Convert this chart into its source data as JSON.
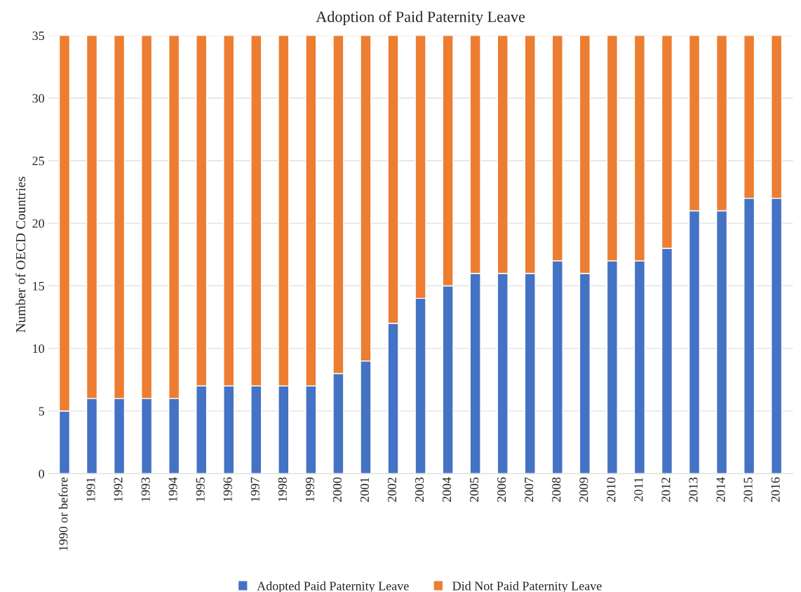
{
  "chart_data": {
    "type": "bar",
    "title": "Adoption of Paid Paternity Leave",
    "ylabel": "Number of OECD Countries",
    "categories": [
      "1990 or before",
      "1991",
      "1992",
      "1993",
      "1994",
      "1995",
      "1996",
      "1997",
      "1998",
      "1999",
      "2000",
      "2001",
      "2002",
      "2003",
      "2004",
      "2005",
      "2006",
      "2007",
      "2008",
      "2009",
      "2010",
      "2011",
      "2012",
      "2013",
      "2014",
      "2015",
      "2016"
    ],
    "series": [
      {
        "name": "Adopted Paid Paternity Leave",
        "color": "#4472c4",
        "values": [
          5,
          6,
          6,
          6,
          6,
          7,
          7,
          7,
          7,
          7,
          8,
          9,
          12,
          14,
          15,
          16,
          16,
          16,
          17,
          16,
          17,
          17,
          18,
          21,
          21,
          22,
          22
        ]
      },
      {
        "name": "Did Not Paid Paternity Leave",
        "color": "#ed7d31",
        "values": [
          30,
          29,
          29,
          29,
          29,
          28,
          28,
          28,
          28,
          28,
          27,
          26,
          23,
          21,
          20,
          19,
          19,
          19,
          18,
          19,
          18,
          18,
          17,
          14,
          14,
          13,
          13
        ]
      }
    ],
    "stacked": true,
    "ylim": [
      0,
      35
    ],
    "yticks": [
      0,
      5,
      10,
      15,
      20,
      25,
      30,
      35
    ],
    "grid": "y",
    "legend": "bottom"
  }
}
